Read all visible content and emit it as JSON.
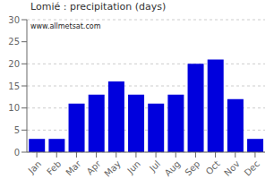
{
  "chart_data": {
    "type": "bar",
    "title": "Lomié : precipitation (days)",
    "categories": [
      "Jan",
      "Feb",
      "Mar",
      "Apr",
      "May",
      "Jun",
      "Jul",
      "Aug",
      "Sep",
      "Oct",
      "Nov",
      "Dec"
    ],
    "values": [
      3,
      3,
      11,
      13,
      16,
      13,
      11,
      13,
      20,
      21,
      12,
      3
    ],
    "color": "#0000dd",
    "ylim": [
      0,
      30
    ],
    "yticks": [
      0,
      5,
      10,
      15,
      20,
      25,
      30
    ],
    "grid": true,
    "annotations": [
      "www.allmetsat.com"
    ]
  }
}
